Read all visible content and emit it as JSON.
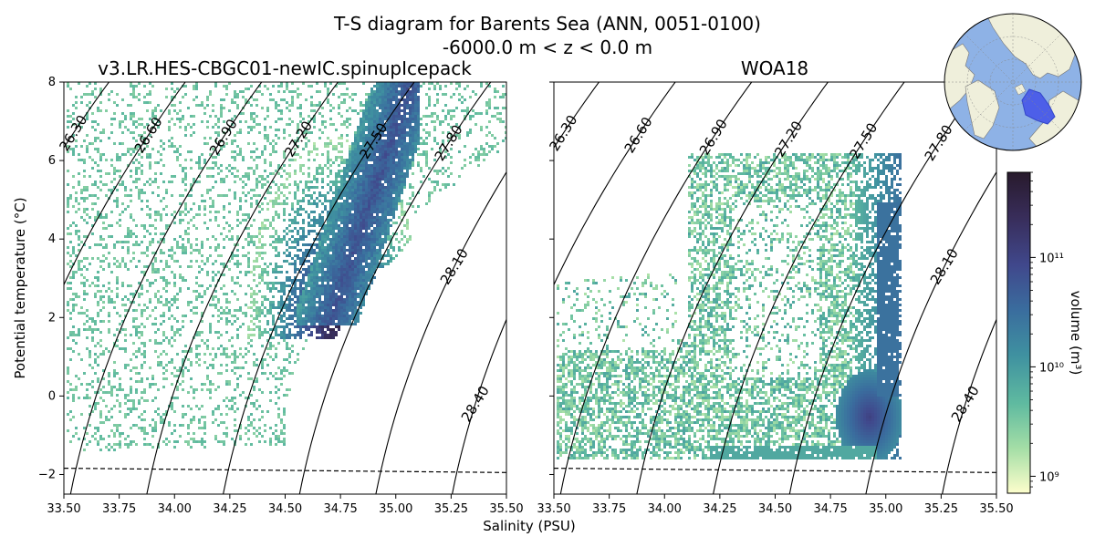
{
  "figure": {
    "title": "T-S diagram for Barents Sea (ANN, 0051-0100)",
    "subtitle": "-6000.0 m < z < 0.0 m",
    "xlabel": "Salinity (PSU)",
    "ylabel": "Potential temperature (°C)",
    "colorbar_label": "volume (m³)"
  },
  "chart_data": [
    {
      "type": "heatmap",
      "title": "v3.LR.HES-CBGC01-newIC.spinupIcepack",
      "xlim": [
        33.5,
        35.5
      ],
      "ylim": [
        -2.5,
        8
      ],
      "xticks": [
        "33.50",
        "33.75",
        "34.00",
        "34.25",
        "34.50",
        "34.75",
        "35.00",
        "35.25",
        "35.50"
      ],
      "yticks": [
        "−2",
        "0",
        "2",
        "4",
        "6",
        "8"
      ],
      "density_contours": [
        "26.30",
        "26.60",
        "26.90",
        "27.20",
        "27.50",
        "27.80",
        "28.10",
        "28.40"
      ],
      "freezing_line": {
        "style": "dashed",
        "s": [
          33.5,
          35.5
        ],
        "t": [
          -1.84,
          -1.95
        ]
      },
      "high_volume_core": {
        "salinity": 34.72,
        "temperature": 1.8
      }
    },
    {
      "type": "heatmap",
      "title": "WOA18",
      "xlim": [
        33.5,
        35.5
      ],
      "ylim": [
        -2.5,
        8
      ],
      "xticks": [
        "33.50",
        "33.75",
        "34.00",
        "34.25",
        "34.50",
        "34.75",
        "35.00",
        "35.25",
        "35.50"
      ],
      "yticks": [
        "−2",
        "0",
        "2",
        "4",
        "6",
        "8"
      ],
      "density_contours": [
        "26.30",
        "26.60",
        "26.90",
        "27.20",
        "27.50",
        "27.80",
        "28.10",
        "28.40"
      ],
      "freezing_line": {
        "style": "dashed",
        "s": [
          33.5,
          35.5
        ],
        "t": [
          -1.84,
          -1.95
        ]
      },
      "high_volume_core": {
        "salinity": 34.92,
        "temperature": -0.5
      }
    }
  ],
  "colorbar": {
    "scale": "log",
    "colormap": "deep",
    "range": [
      700000000.0,
      600000000000.0
    ],
    "ticks": [
      {
        "value": 1000000000.0,
        "label": "10⁹"
      },
      {
        "value": 10000000000.0,
        "label": "10¹⁰"
      },
      {
        "value": 100000000000.0,
        "label": "10¹¹"
      }
    ],
    "colors": [
      "#fdfecc",
      "#a4dea6",
      "#5fbaa0",
      "#3f91a0",
      "#3a6d9e",
      "#40488c",
      "#382d5a",
      "#281a2c"
    ]
  },
  "inset_map": {
    "projection": "north-polar",
    "ocean": "#8eb2e6",
    "land": "#efefdb",
    "region": "#4d5fe8"
  }
}
